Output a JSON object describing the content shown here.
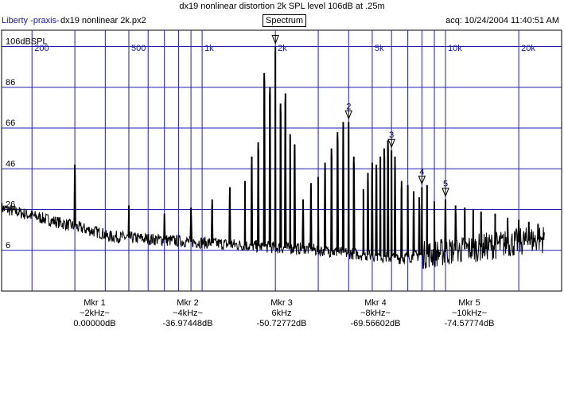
{
  "header": {
    "title": "dx19 nonlinear distortion 2k SPL level 106dB at .25m",
    "brand": "Liberty -praxis-",
    "file": "dx19 nonlinear 2k.px2",
    "mode_button": "Spectrum",
    "acq": "acq: 10/24/2004 11:40:51 AM"
  },
  "colors": {
    "grid": "#1f1fb0",
    "trace": "#000000",
    "label": "#1a1a9a",
    "background": "#ffffff"
  },
  "chart_data": {
    "type": "line",
    "title": "dx19 nonlinear distortion 2k SPL level 106dB at .25m",
    "x_scale": "log",
    "xlim": [
      150,
      30000
    ],
    "ylim": [
      -14,
      114
    ],
    "grid": true,
    "x_tick_labels": [
      {
        "x": 200,
        "label": "200"
      },
      {
        "x": 500,
        "label": "500"
      },
      {
        "x": 1000,
        "label": "1k"
      },
      {
        "x": 2000,
        "label": "2k"
      },
      {
        "x": 5000,
        "label": "5k"
      },
      {
        "x": 10000,
        "label": "10k"
      },
      {
        "x": 20000,
        "label": "20k"
      }
    ],
    "y_tick_labels": [
      {
        "y": 106,
        "label": "106dBSPL"
      },
      {
        "y": 86,
        "label": "86"
      },
      {
        "y": 66,
        "label": "66"
      },
      {
        "y": 46,
        "label": "46"
      },
      {
        "y": 26,
        "label": "26"
      },
      {
        "y": 6,
        "label": "6"
      }
    ],
    "peaks": [
      {
        "f": 300,
        "db": 48
      },
      {
        "f": 500,
        "db": 28
      },
      {
        "f": 700,
        "db": 24
      },
      {
        "f": 900,
        "db": 27
      },
      {
        "f": 1100,
        "db": 31
      },
      {
        "f": 1300,
        "db": 37
      },
      {
        "f": 1500,
        "db": 40
      },
      {
        "f": 1600,
        "db": 52
      },
      {
        "f": 1700,
        "db": 59
      },
      {
        "f": 1800,
        "db": 93
      },
      {
        "f": 1900,
        "db": 86
      },
      {
        "f": 2000,
        "db": 106
      },
      {
        "f": 2100,
        "db": 78
      },
      {
        "f": 2200,
        "db": 83
      },
      {
        "f": 2300,
        "db": 63
      },
      {
        "f": 2400,
        "db": 58
      },
      {
        "f": 2600,
        "db": 31
      },
      {
        "f": 2800,
        "db": 39
      },
      {
        "f": 3000,
        "db": 42
      },
      {
        "f": 3200,
        "db": 49
      },
      {
        "f": 3400,
        "db": 56
      },
      {
        "f": 3600,
        "db": 64
      },
      {
        "f": 3800,
        "db": 69
      },
      {
        "f": 4000,
        "db": 69
      },
      {
        "f": 4200,
        "db": 52
      },
      {
        "f": 4600,
        "db": 36
      },
      {
        "f": 4800,
        "db": 44
      },
      {
        "f": 5000,
        "db": 49
      },
      {
        "f": 5200,
        "db": 48
      },
      {
        "f": 5400,
        "db": 52
      },
      {
        "f": 5600,
        "db": 56
      },
      {
        "f": 5800,
        "db": 60
      },
      {
        "f": 6000,
        "db": 55
      },
      {
        "f": 6200,
        "db": 52
      },
      {
        "f": 6600,
        "db": 40
      },
      {
        "f": 7000,
        "db": 38
      },
      {
        "f": 7400,
        "db": 35
      },
      {
        "f": 7800,
        "db": 32
      },
      {
        "f": 8000,
        "db": 37
      },
      {
        "f": 8400,
        "db": 38
      },
      {
        "f": 9000,
        "db": 30
      },
      {
        "f": 10000,
        "db": 31
      },
      {
        "f": 11000,
        "db": 28
      },
      {
        "f": 12000,
        "db": 27
      },
      {
        "f": 13000,
        "db": 26
      },
      {
        "f": 14000,
        "db": 25
      },
      {
        "f": 16000,
        "db": 24
      },
      {
        "f": 18000,
        "db": 22
      },
      {
        "f": 20000,
        "db": 21
      },
      {
        "f": 22000,
        "db": 20
      },
      {
        "f": 24000,
        "db": 19
      }
    ],
    "markers": [
      {
        "label": "",
        "f": 2000,
        "db": 106
      },
      {
        "label": "2",
        "f": 4000,
        "db": 69
      },
      {
        "label": "3",
        "f": 6000,
        "db": 55
      },
      {
        "label": "4",
        "f": 8000,
        "db": 37
      },
      {
        "label": "5",
        "f": 10000,
        "db": 31
      }
    ]
  },
  "markers_readout": [
    {
      "name": "Mkr 1",
      "freq": "~2kHz~",
      "value": "0.00000dB"
    },
    {
      "name": "Mkr 2",
      "freq": "~4kHz~",
      "value": "-36.97448dB"
    },
    {
      "name": "Mkr 3",
      "freq": "6kHz",
      "value": "-50.72772dB"
    },
    {
      "name": "Mkr 4",
      "freq": "~8kHz~",
      "value": "-69.56602dB"
    },
    {
      "name": "Mkr 5",
      "freq": "~10kHz~",
      "value": "-74.57774dB"
    }
  ]
}
